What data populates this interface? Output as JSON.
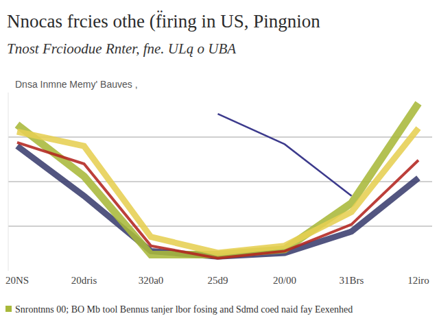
{
  "chart_data": {
    "type": "line",
    "title": "Nnocas frcies othe (f̈iring in US, Pingnion",
    "subtitle": "Tnost Frcioоdue Rnter, fne. ULą o UBA",
    "y_label": "Dnsa Inmne Memy' Bauves ,",
    "caption": "Snrontnns 00; BO Mb tool Bennus tanjer lbor fosing and Sdmd coed naid fay Eexenhed",
    "categories": [
      "20NS",
      "20dris",
      "320a0",
      "25d9",
      "20/00",
      "31Brs",
      "12iro"
    ],
    "series": [
      {
        "color": "#3a3d6e",
        "values": [
          70,
          42,
          11,
          8,
          10,
          22,
          52
        ]
      },
      {
        "color": "#a8b83a",
        "values": [
          82,
          53,
          9,
          9,
          12,
          38,
          94
        ]
      },
      {
        "color": "#e6cf52",
        "values": [
          78,
          70,
          19,
          10,
          14,
          33,
          80
        ]
      },
      {
        "color": "#b3241f",
        "values": [
          72,
          60,
          14,
          7,
          11,
          26,
          62
        ]
      },
      {
        "color": "#3c3a8c",
        "values": [
          null,
          null,
          null,
          88,
          71,
          42,
          null
        ]
      }
    ],
    "ylim": [
      0,
      100
    ],
    "yticks": [
      25,
      50,
      75
    ],
    "grid": true,
    "tick_labels": "x"
  }
}
